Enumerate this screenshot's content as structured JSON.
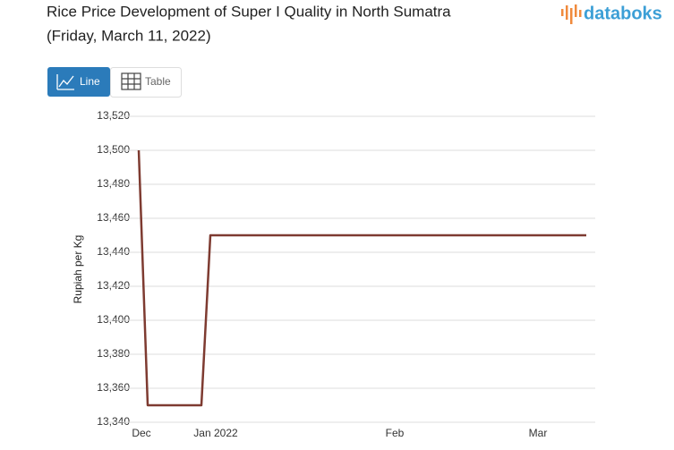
{
  "brand": "databoks",
  "view_buttons": [
    "Line",
    "Table"
  ],
  "chart_data": {
    "type": "line",
    "title": "Rice Price Development of Super I Quality in North Sumatra",
    "subtitle": "(Friday, March 11, 2022)",
    "y_label": "Rupiah per Kg",
    "color": "#7e3b31",
    "categories": [
      "Dec",
      null,
      null,
      null,
      null,
      null,
      null,
      null,
      null,
      "Jan 2022",
      null,
      null,
      null,
      null,
      null,
      null,
      null,
      null,
      null,
      null,
      null,
      null,
      null,
      null,
      null,
      null,
      null,
      null,
      null,
      "Feb",
      null,
      null,
      null,
      null,
      null,
      null,
      null,
      null,
      null,
      null,
      null,
      null,
      null,
      null,
      null,
      "Mar",
      null,
      null,
      null,
      null,
      null
    ],
    "values": [
      13500,
      13350,
      13350,
      13350,
      13350,
      13350,
      13350,
      13350,
      13450,
      13450,
      13450,
      13450,
      13450,
      13450,
      13450,
      13450,
      13450,
      13450,
      13450,
      13450,
      13450,
      13450,
      13450,
      13450,
      13450,
      13450,
      13450,
      13450,
      13450,
      13450,
      13450,
      13450,
      13450,
      13450,
      13450,
      13450,
      13450,
      13450,
      13450,
      13450,
      13450,
      13450,
      13450,
      13450,
      13450,
      13450,
      13450,
      13450,
      13450,
      13450,
      13450
    ],
    "ylim": [
      13340,
      13520
    ],
    "yticks": [
      {
        "value": 13340,
        "label": "13,340"
      },
      {
        "value": 13360,
        "label": "13,360"
      },
      {
        "value": 13380,
        "label": "13,380"
      },
      {
        "value": 13400,
        "label": "13,400"
      },
      {
        "value": 13420,
        "label": "13,420"
      },
      {
        "value": 13440,
        "label": "13,440"
      },
      {
        "value": 13460,
        "label": "13,460"
      },
      {
        "value": 13480,
        "label": "13,480"
      },
      {
        "value": 13500,
        "label": "13,500"
      },
      {
        "value": 13520,
        "label": "13,520"
      }
    ],
    "grid": true
  }
}
